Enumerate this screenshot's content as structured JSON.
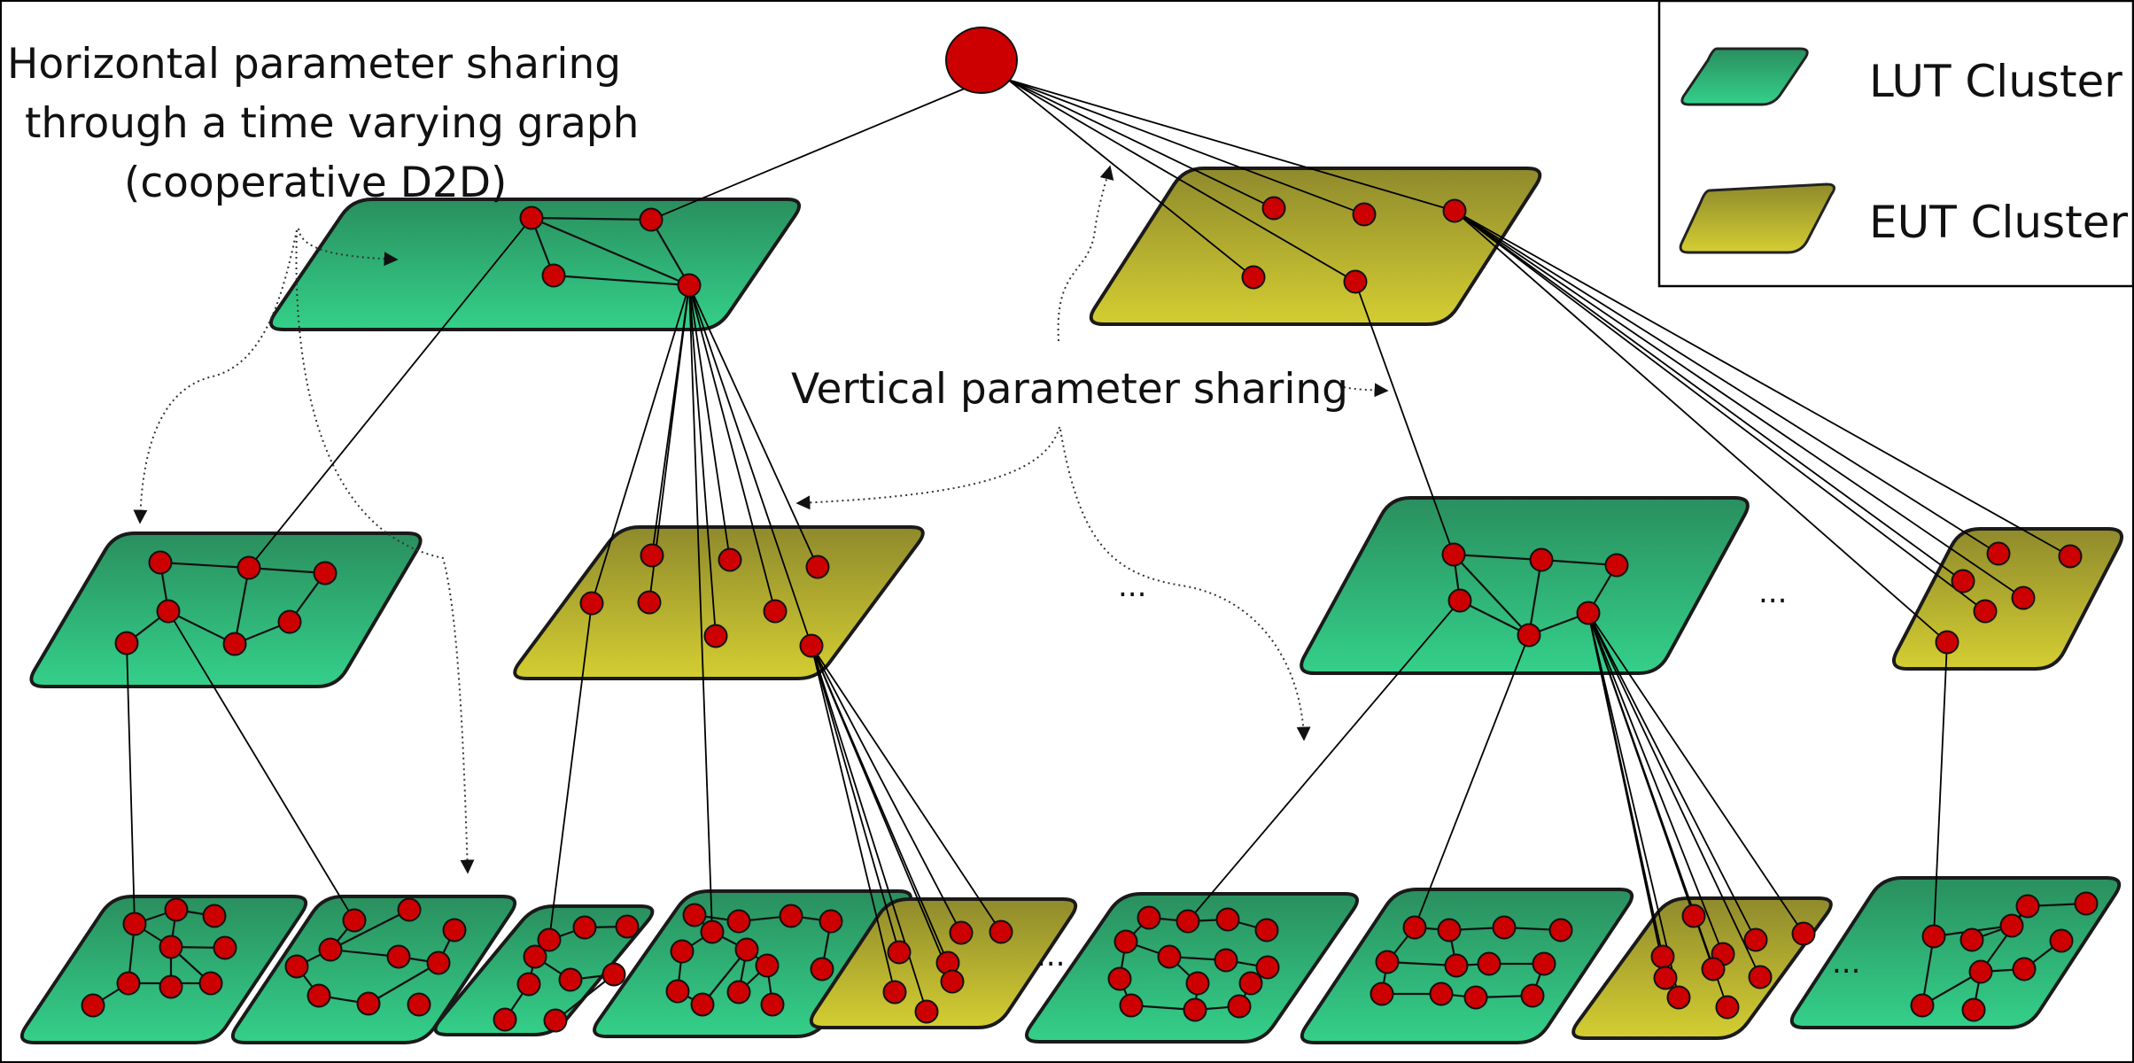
{
  "annotations": {
    "horizontal_line1": "Horizontal parameter sharing",
    "horizontal_line2": "through a time varying graph",
    "horizontal_line3": "(cooperative D2D)",
    "vertical": "Vertical parameter sharing"
  },
  "legend": {
    "lut_label": "LUT Cluster",
    "eut_label": "EUT Cluster",
    "lut_color": "#2fbf7f",
    "eut_color": "#c8c43a"
  },
  "ellipsis": "...",
  "colors": {
    "node": "#cc0000",
    "lut_dark": "#2a8f5e",
    "lut_light": "#34d08a",
    "eut_dark": "#8f8a2c",
    "eut_light": "#d4ce32"
  }
}
